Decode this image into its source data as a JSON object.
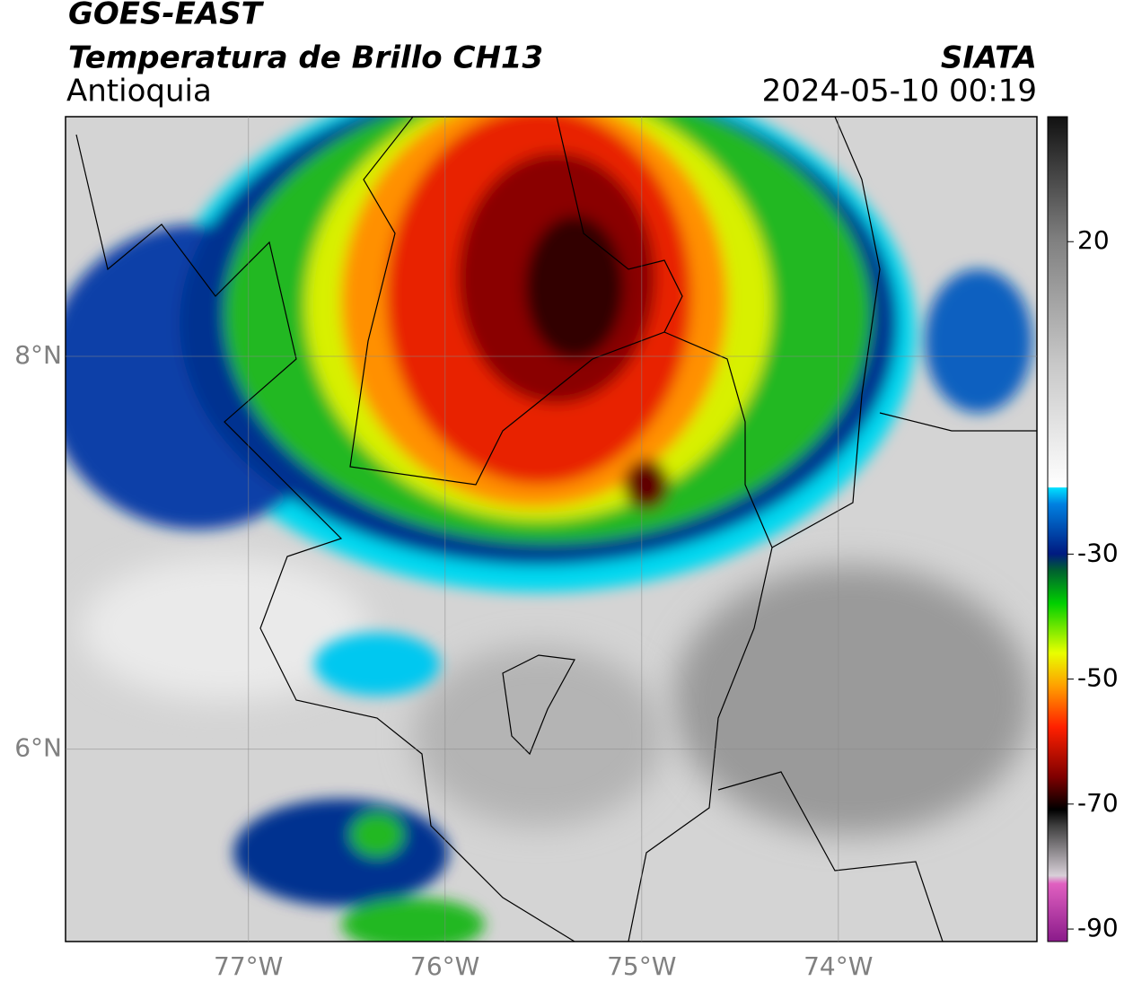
{
  "header": {
    "title": "GOES-EAST",
    "subtitle": "Temperatura de Brillo CH13",
    "region": "Antioquia",
    "source": "SIATA",
    "datetime": "2024-05-10 00:19"
  },
  "map": {
    "xlim": [
      -77.93,
      -72.99
    ],
    "ylim": [
      5.02,
      9.22
    ],
    "xticks": [
      {
        "value": -77,
        "label": "77°W"
      },
      {
        "value": -76,
        "label": "76°W"
      },
      {
        "value": -75,
        "label": "75°W"
      },
      {
        "value": -74,
        "label": "74°W"
      }
    ],
    "yticks": [
      {
        "value": 8,
        "label": "8°N"
      },
      {
        "value": 6,
        "label": "6°N"
      }
    ],
    "grid": true
  },
  "colorbar": {
    "lim": [
      -92,
      40
    ],
    "ticks": [
      20,
      -30,
      -50,
      -70,
      -90
    ]
  }
}
